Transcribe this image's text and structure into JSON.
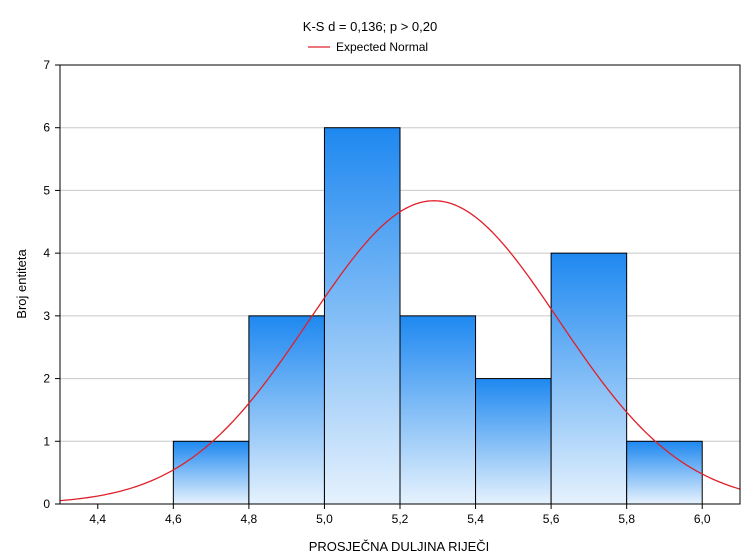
{
  "chart_data": {
    "type": "bar",
    "title": "K-S d = 0,136; p > 0,20",
    "xlabel": "PROSJEČNA DULJINA RIJEČI",
    "ylabel": "Broj entiteta",
    "xlim": [
      4.3,
      6.1
    ],
    "ylim": [
      0,
      7
    ],
    "x_ticks": [
      4.4,
      4.6,
      4.8,
      5.0,
      5.2,
      5.4,
      5.6,
      5.8,
      6.0
    ],
    "x_tick_labels": [
      "4,4",
      "4,6",
      "4,8",
      "5,0",
      "5,2",
      "5,4",
      "5,6",
      "5,8",
      "6,0"
    ],
    "y_ticks": [
      0,
      1,
      2,
      3,
      4,
      5,
      6,
      7
    ],
    "y_tick_labels": [
      "0",
      "1",
      "2",
      "3",
      "4",
      "5",
      "6",
      "7"
    ],
    "bins": [
      {
        "from": 4.6,
        "to": 4.8,
        "count": 1
      },
      {
        "from": 4.8,
        "to": 5.0,
        "count": 3
      },
      {
        "from": 5.0,
        "to": 5.2,
        "count": 6
      },
      {
        "from": 5.2,
        "to": 5.4,
        "count": 3
      },
      {
        "from": 5.4,
        "to": 5.6,
        "count": 2
      },
      {
        "from": 5.6,
        "to": 5.8,
        "count": 4
      },
      {
        "from": 5.8,
        "to": 6.0,
        "count": 1
      }
    ],
    "expected_normal": {
      "name": "Expected Normal",
      "mean": 5.29,
      "sd": 0.33,
      "n": 20,
      "bin_width": 0.2
    },
    "legend_placement": "top-center",
    "grid": "horizontal",
    "colors": {
      "bar_top": "#1e88f0",
      "bar_bottom": "#e6f2fd",
      "bar_stroke": "#000000",
      "curve": "#e0202a",
      "gridline": "#c8c8c8"
    }
  }
}
